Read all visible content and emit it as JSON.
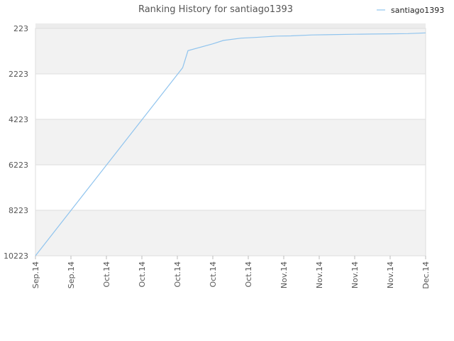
{
  "chart_data": {
    "type": "line",
    "title": "Ranking History for santiago1393",
    "xlabel": "",
    "ylabel": "",
    "y_reversed": true,
    "ylim": [
      223,
      10223
    ],
    "yticks": [
      223,
      2223,
      4223,
      6223,
      8223,
      10223
    ],
    "ytick_labels": [
      "223",
      "2223",
      "4223",
      "6223",
      "8223",
      "10223"
    ],
    "xtick_labels": [
      "Sep.14",
      "Sep.14",
      "Oct.14",
      "Oct.14",
      "Oct.14",
      "Oct.14",
      "Oct.14",
      "Nov.14",
      "Nov.14",
      "Nov.14",
      "Nov.14",
      "Dec.14"
    ],
    "legend": {
      "position": "top-right"
    },
    "grid": true,
    "series": [
      {
        "name": "santiago1393",
        "color": "#90c4ee",
        "x": [
          0,
          4.0,
          4.15,
          4.3,
          5.0,
          5.3,
          5.8,
          6.2,
          6.8,
          7.2,
          7.8,
          8.2,
          9.0,
          9.5,
          10.0,
          10.5,
          11.0
        ],
        "y": [
          10223,
          2250,
          1950,
          1200,
          900,
          750,
          650,
          620,
          560,
          550,
          510,
          500,
          480,
          470,
          460,
          450,
          420
        ]
      }
    ]
  }
}
